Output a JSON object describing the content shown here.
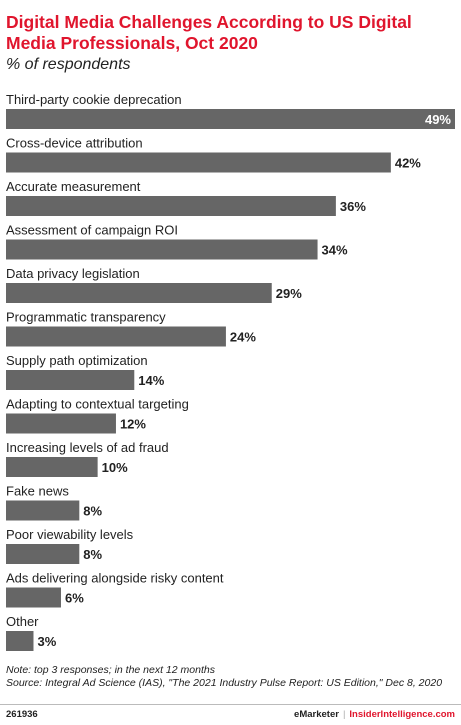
{
  "header": {
    "title": "Digital Media Challenges According to US Digital Media Professionals, Oct 2020",
    "subtitle": "% of respondents"
  },
  "chart_data": {
    "type": "bar",
    "orientation": "horizontal",
    "categories": [
      "Third-party cookie deprecation",
      "Cross-device attribution",
      "Accurate measurement",
      "Assessment of campaign ROI",
      "Data privacy legislation",
      "Programmatic transparency",
      "Supply path optimization",
      "Adapting to contextual targeting",
      "Increasing levels of ad fraud",
      "Fake news",
      "Poor viewability levels",
      "Ads delivering alongside risky content",
      "Other"
    ],
    "values": [
      49,
      42,
      36,
      34,
      29,
      24,
      14,
      12,
      10,
      8,
      8,
      6,
      3
    ],
    "value_labels": [
      "49%",
      "42%",
      "36%",
      "34%",
      "29%",
      "24%",
      "14%",
      "12%",
      "10%",
      "8%",
      "8%",
      "6%",
      "3%"
    ],
    "xlim": [
      0,
      49
    ],
    "bar_color": "#666666",
    "grid": false,
    "legend": "none"
  },
  "footnotes": {
    "note": "Note: top 3 responses; in the next 12 months",
    "source": "Source: Integral Ad Science (IAS), \"The 2021 Industry Pulse Report: US Edition,\" Dec 8, 2020"
  },
  "footer": {
    "chart_id": "261936",
    "brand_1": "eMarketer",
    "separator": "|",
    "brand_2": "InsiderIntelligence.com"
  }
}
